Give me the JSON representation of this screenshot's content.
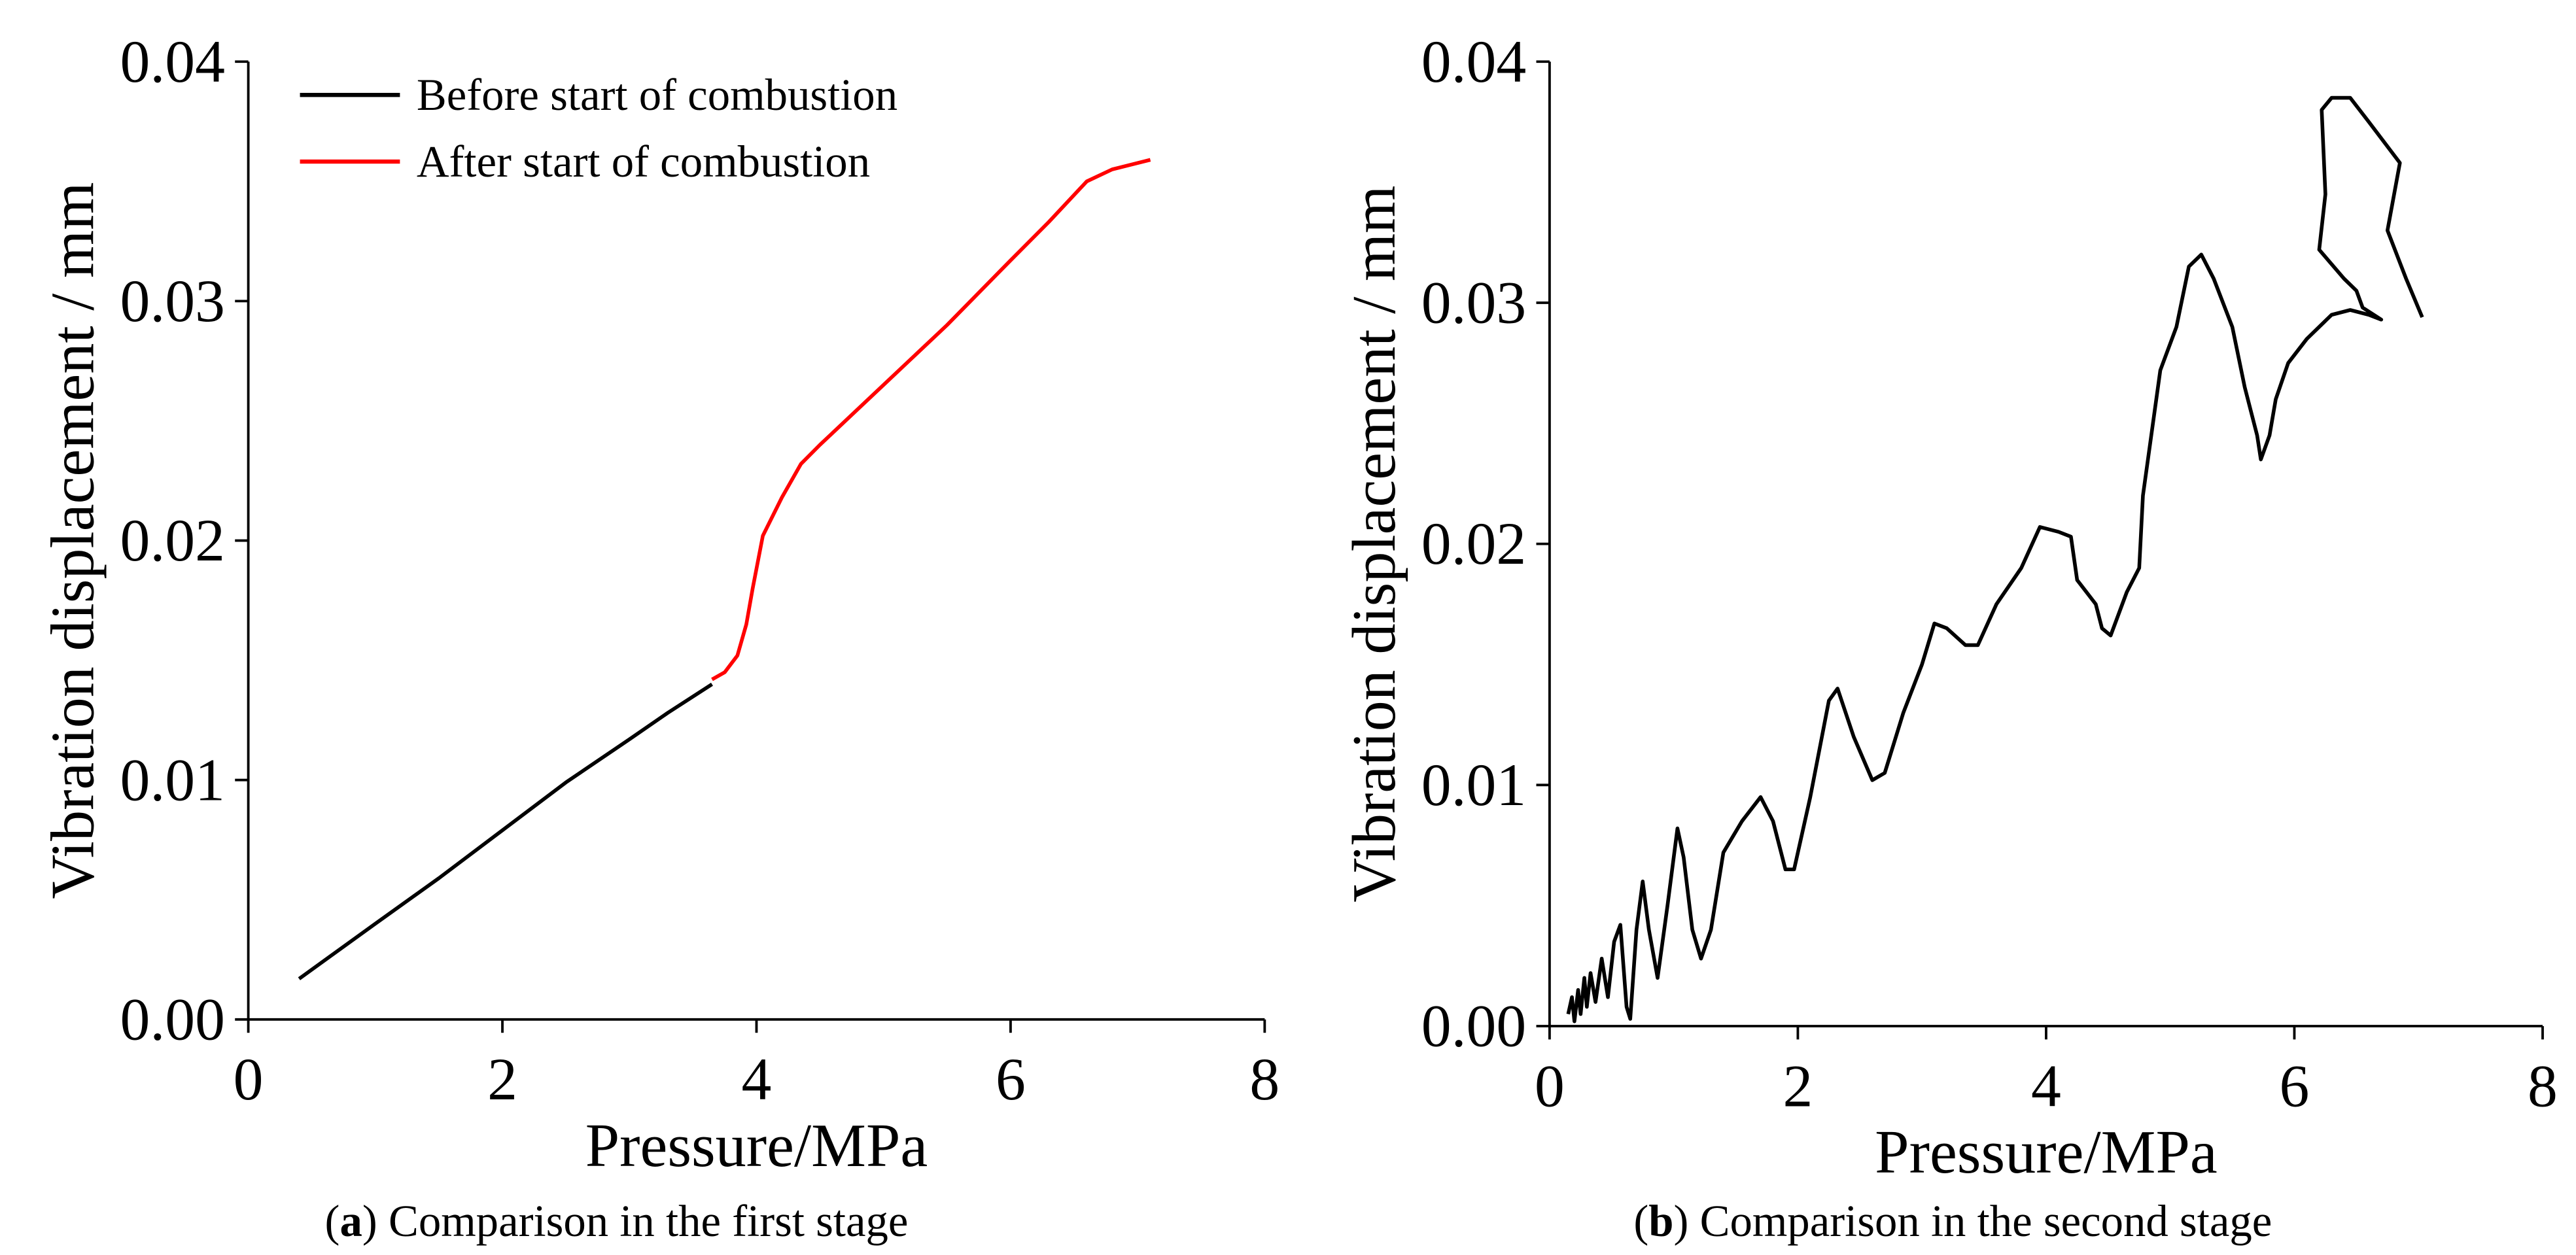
{
  "chart_data": [
    {
      "type": "line",
      "xlabel": "Pressure/MPa",
      "ylabel": "Vibration displacement / mm",
      "caption": {
        "open": "(",
        "label": "a",
        "text": ") Comparison in the first stage"
      },
      "xlim": [
        0,
        8
      ],
      "ylim": [
        0,
        0.04
      ],
      "xticks": [
        0,
        2,
        4,
        6,
        8
      ],
      "yticks": [
        {
          "value": 0,
          "label": "0.00"
        },
        {
          "value": 0.01,
          "label": "0.01"
        },
        {
          "value": 0.02,
          "label": "0.02"
        },
        {
          "value": 0.03,
          "label": "0.03"
        },
        {
          "value": 0.04,
          "label": "0.04"
        }
      ],
      "legend": "upper left",
      "series": [
        {
          "name": "Before start of combustion",
          "color": "#000000",
          "x": [
            0.4,
            1.0,
            1.5,
            2.0,
            2.5,
            3.0,
            3.3,
            3.65
          ],
          "values": [
            0.0017,
            0.004,
            0.0059,
            0.0079,
            0.0099,
            0.0117,
            0.0128,
            0.014
          ]
        },
        {
          "name": "After start of combustion",
          "color": "#ff0000",
          "x": [
            3.65,
            3.75,
            3.85,
            3.92,
            3.97,
            4.05,
            4.2,
            4.35,
            4.5,
            5.0,
            5.5,
            6.0,
            6.3,
            6.6,
            6.8,
            7.1
          ],
          "values": [
            0.0142,
            0.0145,
            0.0152,
            0.0165,
            0.018,
            0.0202,
            0.0218,
            0.0232,
            0.024,
            0.0265,
            0.029,
            0.0317,
            0.0333,
            0.035,
            0.0355,
            0.0359
          ]
        }
      ]
    },
    {
      "type": "line",
      "xlabel": "Pressure/MPa",
      "ylabel": "Vibration displacement / mm",
      "caption": {
        "open": "(",
        "label": "b",
        "text": ") Comparison in the second stage"
      },
      "xlim": [
        0,
        8
      ],
      "ylim": [
        0,
        0.04
      ],
      "xticks": [
        0,
        2,
        4,
        6,
        8
      ],
      "yticks": [
        {
          "value": 0,
          "label": "0.00"
        },
        {
          "value": 0.01,
          "label": "0.01"
        },
        {
          "value": 0.02,
          "label": "0.02"
        },
        {
          "value": 0.03,
          "label": "0.03"
        },
        {
          "value": 0.04,
          "label": "0.04"
        }
      ],
      "series": [
        {
          "color": "#000000",
          "x": [
            0.15,
            0.18,
            0.2,
            0.23,
            0.25,
            0.28,
            0.3,
            0.33,
            0.37,
            0.42,
            0.47,
            0.52,
            0.57,
            0.62,
            0.65,
            0.7,
            0.75,
            0.8,
            0.87,
            0.95,
            1.03,
            1.08,
            1.15,
            1.22,
            1.3,
            1.4,
            1.55,
            1.7,
            1.8,
            1.9,
            1.97,
            2.1,
            2.25,
            2.32,
            2.45,
            2.6,
            2.7,
            2.85,
            3.0,
            3.1,
            3.2,
            3.35,
            3.45,
            3.6,
            3.8,
            3.95,
            4.1,
            4.2,
            4.25,
            4.4,
            4.45,
            4.52,
            4.65,
            4.75,
            4.78,
            4.92,
            5.05,
            5.15,
            5.25,
            5.35,
            5.5,
            5.6,
            5.7,
            5.73,
            5.8,
            5.85,
            5.95,
            6.1,
            6.3,
            6.45,
            6.6,
            6.7,
            6.55,
            6.5,
            6.4,
            6.2,
            6.25,
            6.22,
            6.3,
            6.45,
            6.6,
            6.85,
            6.75,
            6.9,
            7.03
          ],
          "values": [
            0.0005,
            0.0012,
            0.0002,
            0.0015,
            0.0005,
            0.002,
            0.0008,
            0.0022,
            0.001,
            0.0028,
            0.0012,
            0.0035,
            0.0042,
            0.0008,
            0.0003,
            0.004,
            0.006,
            0.004,
            0.002,
            0.005,
            0.0082,
            0.007,
            0.004,
            0.0028,
            0.004,
            0.0072,
            0.0085,
            0.0095,
            0.0085,
            0.0065,
            0.0065,
            0.0095,
            0.0135,
            0.014,
            0.012,
            0.0102,
            0.0105,
            0.013,
            0.015,
            0.0167,
            0.0165,
            0.0158,
            0.0158,
            0.0175,
            0.019,
            0.0207,
            0.0205,
            0.0203,
            0.0185,
            0.0175,
            0.0165,
            0.0162,
            0.018,
            0.019,
            0.022,
            0.0272,
            0.029,
            0.0315,
            0.032,
            0.031,
            0.029,
            0.0265,
            0.0245,
            0.0235,
            0.0245,
            0.026,
            0.0275,
            0.0285,
            0.0295,
            0.0297,
            0.0295,
            0.0293,
            0.0298,
            0.0305,
            0.031,
            0.0322,
            0.0345,
            0.038,
            0.0385,
            0.0385,
            0.0375,
            0.0358,
            0.033,
            0.031,
            0.0294
          ]
        }
      ]
    }
  ]
}
